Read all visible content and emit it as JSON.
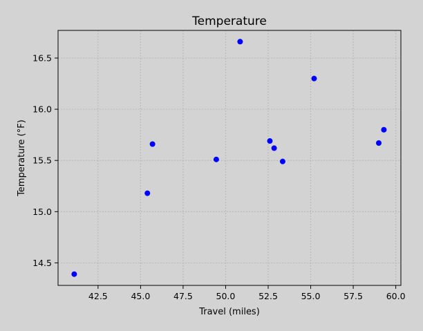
{
  "chart_data": {
    "type": "scatter",
    "title": "Temperature",
    "xlabel": "Travel (miles)",
    "ylabel": "Temperature (°F)",
    "xlim": [
      40.15,
      60.3
    ],
    "ylim": [
      14.28,
      16.77
    ],
    "xticks": [
      42.5,
      45.0,
      47.5,
      50.0,
      52.5,
      55.0,
      57.5,
      60.0
    ],
    "xtick_labels": [
      "42.5",
      "45.0",
      "47.5",
      "50.0",
      "52.5",
      "55.0",
      "57.5",
      "60.0"
    ],
    "yticks": [
      14.5,
      15.0,
      15.5,
      16.0,
      16.5
    ],
    "ytick_labels": [
      "14.5",
      "15.0",
      "15.5",
      "16.0",
      "16.5"
    ],
    "grid": true,
    "marker_color": "#0000ff",
    "background_color": "#d3d3d3",
    "plot_background_color": "#d3d3d3",
    "points": [
      {
        "x": 41.1,
        "y": 14.39
      },
      {
        "x": 45.4,
        "y": 15.18
      },
      {
        "x": 45.7,
        "y": 15.66
      },
      {
        "x": 49.45,
        "y": 15.51
      },
      {
        "x": 50.85,
        "y": 16.66
      },
      {
        "x": 52.6,
        "y": 15.69
      },
      {
        "x": 52.85,
        "y": 15.62
      },
      {
        "x": 53.35,
        "y": 15.49
      },
      {
        "x": 55.2,
        "y": 16.3
      },
      {
        "x": 59.0,
        "y": 15.67
      },
      {
        "x": 59.3,
        "y": 15.8
      }
    ]
  }
}
